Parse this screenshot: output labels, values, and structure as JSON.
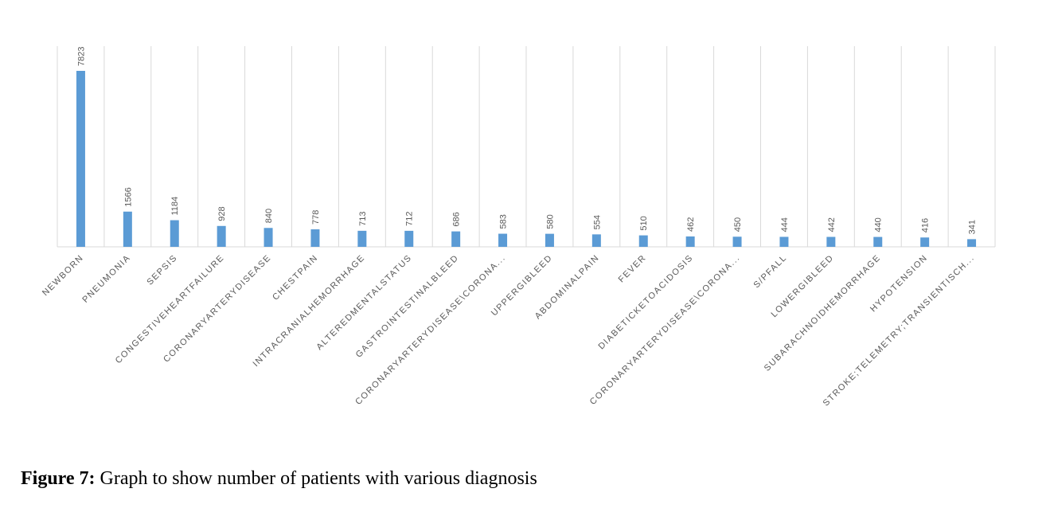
{
  "chart_data": {
    "type": "bar",
    "title": "",
    "xlabel": "",
    "ylabel": "",
    "grid": "vertical",
    "legend": "none",
    "categories": [
      "NEWBORN",
      "PNEUMONIA",
      "SEPSIS",
      "CONGESTIVEHEARTFAILURE",
      "CORONARYARTERYDISEASE",
      "CHESTPAIN",
      "INTRACRANIALHEMORRHAGE",
      "ALTEREDMENTALSTATUS",
      "GASTROINTESTINALBLEED",
      "CORONARYARTERYDISEASE\\CORONA...",
      "UPPERGIBLEED",
      "ABDOMINALPAIN",
      "FEVER",
      "DIABETICKETOACIDOSIS",
      "CORONARYARTERYDISEASE\\CORONA...",
      "S/PFALL",
      "LOWERGIBLEED",
      "SUBARACHNOIDHEMORRHAGE",
      "HYPOTENSION",
      "STROKE;TELEMETRY;TRANSIENTISCH..."
    ],
    "values": [
      7823,
      1566,
      1184,
      928,
      840,
      778,
      713,
      712,
      686,
      583,
      580,
      554,
      510,
      462,
      450,
      444,
      442,
      440,
      416,
      341
    ],
    "data_labels": [
      "7823",
      "1566",
      "1184",
      "928",
      "840",
      "778",
      "713",
      "712",
      "686",
      "583",
      "580",
      "554",
      "510",
      "462",
      "450",
      "444",
      "442",
      "440",
      "416",
      "341"
    ],
    "ylim": [
      0,
      8000
    ],
    "bar_color": "#5b9bd5",
    "grid_color": "#d9d9d9",
    "label_color": "#595959"
  },
  "caption": {
    "prefix": "Figure 7:",
    "text": " Graph to show number of patients with various diagnosis"
  }
}
